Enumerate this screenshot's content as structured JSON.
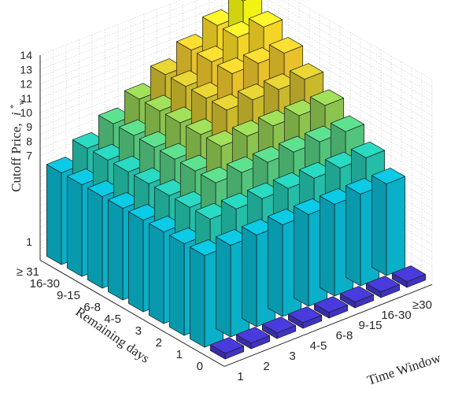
{
  "chart_data": {
    "type": "bar3d",
    "title": "",
    "zlabel": "Cutoff Price, $i^*_w$",
    "zlabel_text": "Cutoff Price,",
    "zlabel_symbol": "i",
    "zlabel_sub": "w",
    "zlabel_sup": "*",
    "xlabel": "Time Window",
    "ylabel": "Remaining days",
    "x_categories": [
      "1",
      "2",
      "3",
      "4-5",
      "6-8",
      "9-15",
      "16-30",
      "≥30"
    ],
    "y_categories": [
      "0",
      "1",
      "2",
      "3",
      "4-5",
      "6-8",
      "9-15",
      "16-30",
      "≥ 31"
    ],
    "z_ticks": [
      1,
      7,
      8,
      9,
      10,
      11,
      12,
      13,
      14
    ],
    "colormap": "parula",
    "values": [
      [
        0,
        0,
        0,
        0,
        0,
        0,
        0,
        0
      ],
      [
        6,
        6,
        6,
        6,
        6,
        6,
        6,
        6
      ],
      [
        6,
        7,
        7,
        7,
        7,
        7,
        7,
        7
      ],
      [
        6,
        7,
        8,
        8,
        8,
        8,
        8,
        8
      ],
      [
        6,
        7,
        8,
        9,
        9,
        9,
        9,
        9
      ],
      [
        6,
        7,
        8,
        9,
        10,
        10,
        10,
        10
      ],
      [
        6,
        7,
        8,
        9,
        10,
        11,
        11,
        11
      ],
      [
        6,
        7,
        8,
        9,
        10,
        11,
        12,
        12
      ],
      [
        6,
        7,
        8,
        9,
        10,
        11,
        12,
        13
      ]
    ]
  }
}
